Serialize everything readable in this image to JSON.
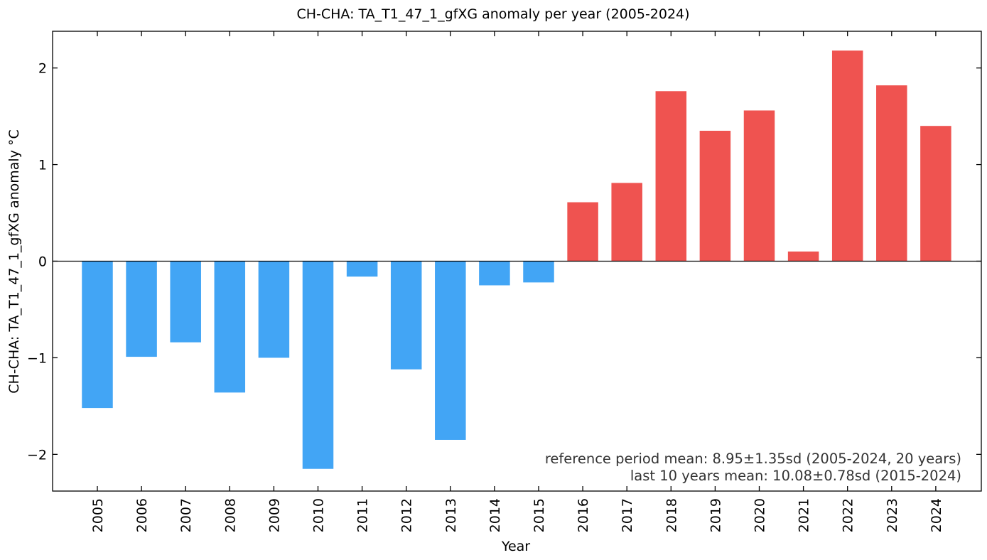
{
  "chart_data": {
    "type": "bar",
    "title": "CH-CHA: TA_T1_47_1_gfXG anomaly per year (2005-2024)",
    "xlabel": "Year",
    "ylabel": "CH-CHA: TA_T1_47_1_gfXG anomaly  °C",
    "categories": [
      "2005",
      "2006",
      "2007",
      "2008",
      "2009",
      "2010",
      "2011",
      "2012",
      "2013",
      "2014",
      "2015",
      "2016",
      "2017",
      "2018",
      "2019",
      "2020",
      "2021",
      "2022",
      "2023",
      "2024"
    ],
    "values": [
      -1.52,
      -0.99,
      -0.84,
      -1.36,
      -1.0,
      -2.15,
      -0.16,
      -1.12,
      -1.85,
      -0.25,
      -0.22,
      0.61,
      0.81,
      1.76,
      1.35,
      1.56,
      0.1,
      2.18,
      1.82,
      1.4
    ],
    "ylim": [
      -2.38,
      2.38
    ],
    "yticks": [
      -2,
      -1,
      0,
      1,
      2
    ],
    "ytick_labels": [
      "−2",
      "−1",
      "0",
      "1",
      "2"
    ],
    "colors": {
      "positive": "#ef5350",
      "negative": "#42a5f5",
      "zero_line": "#000000"
    },
    "grid": false,
    "annotations": [
      "reference period mean: 8.95±1.35sd (2005-2024, 20 years)",
      "last 10 years mean: 10.08±0.78sd (2015-2024)"
    ]
  }
}
